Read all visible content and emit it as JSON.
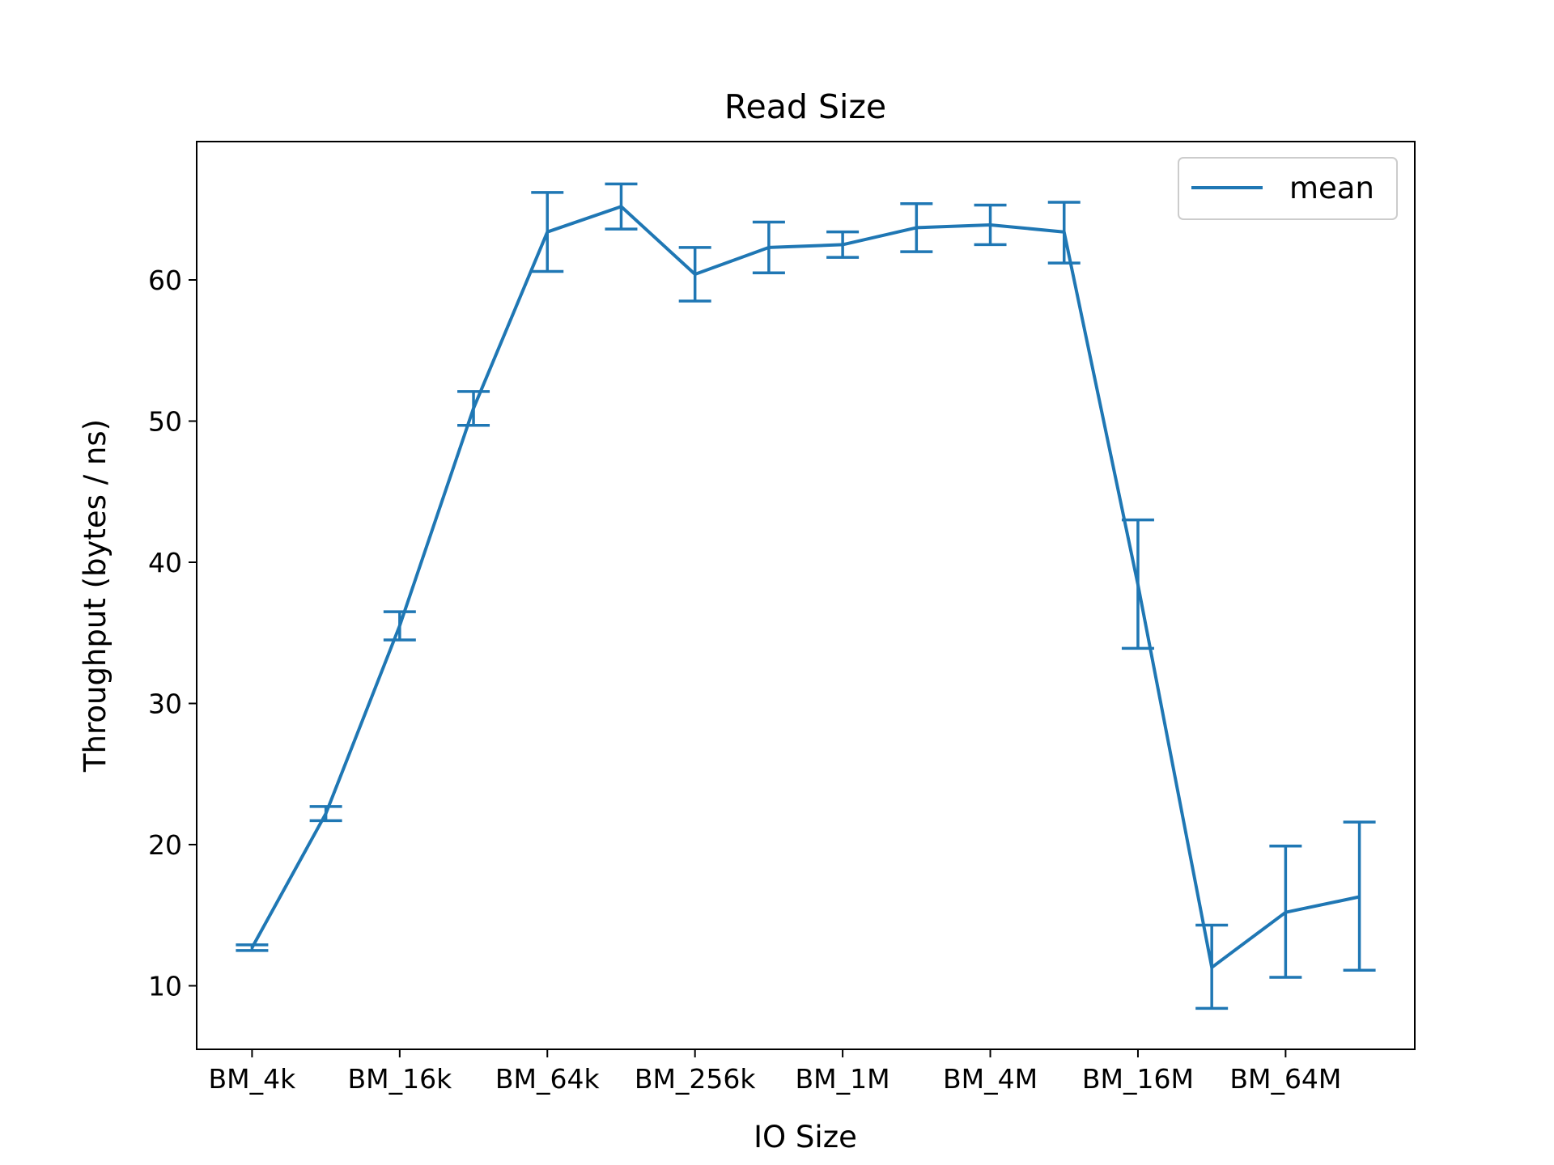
{
  "chart_data": {
    "type": "line",
    "title": "Read Size",
    "xlabel": "IO Size",
    "ylabel": "Throughput (bytes / ns)",
    "x_tick_labels": [
      "BM_4k",
      "BM_16k",
      "BM_64k",
      "BM_256k",
      "BM_1M",
      "BM_4M",
      "BM_16M",
      "BM_64M"
    ],
    "y_ticks": [
      10,
      20,
      30,
      40,
      50,
      60
    ],
    "ylim": [
      5.5,
      69.8
    ],
    "grid": false,
    "legend": {
      "position": "top-right",
      "entries": [
        "mean"
      ]
    },
    "series": [
      {
        "name": "mean",
        "color": "#1f77b4",
        "x": [
          0,
          0.5,
          1,
          1.5,
          2,
          2.5,
          3,
          3.5,
          4,
          4.5,
          5,
          5.5,
          6,
          6.5,
          7,
          7.5
        ],
        "y": [
          12.7,
          22.2,
          35.5,
          50.9,
          63.4,
          65.2,
          60.4,
          62.3,
          62.5,
          63.7,
          63.9,
          63.4,
          38.4,
          11.3,
          15.2,
          16.3
        ],
        "err_low": [
          12.5,
          21.7,
          34.5,
          49.7,
          60.6,
          63.6,
          58.5,
          60.5,
          61.6,
          62.0,
          62.5,
          61.2,
          33.9,
          8.4,
          10.6,
          11.1
        ],
        "err_high": [
          12.9,
          22.7,
          36.5,
          52.1,
          66.2,
          66.8,
          62.3,
          64.1,
          63.4,
          65.4,
          65.3,
          65.5,
          43.0,
          14.3,
          19.9,
          21.6
        ]
      }
    ]
  }
}
